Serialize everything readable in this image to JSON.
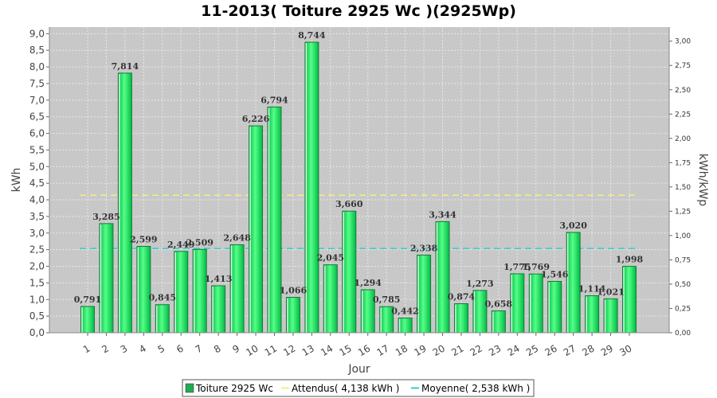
{
  "chart_data": {
    "type": "bar",
    "title": "11-2013( Toiture 2925 Wc )(2925Wp)",
    "xlabel": "Jour",
    "ylabel": "kWh",
    "y2label": "kWh/kWp",
    "ylim": [
      0,
      9.2
    ],
    "y2lim": [
      0,
      3.145
    ],
    "yticks": [
      "0,0",
      "0,5",
      "1,0",
      "1,5",
      "2,0",
      "2,5",
      "3,0",
      "3,5",
      "4,0",
      "4,5",
      "5,0",
      "5,5",
      "6,0",
      "6,5",
      "7,0",
      "7,5",
      "8,0",
      "8,5",
      "9,0"
    ],
    "y2ticks": [
      "0,00",
      "0,25",
      "0,50",
      "0,75",
      "1,00",
      "1,25",
      "1,50",
      "1,75",
      "2,00",
      "2,25",
      "2,50",
      "2,75",
      "3,00"
    ],
    "categories": [
      "1",
      "2",
      "3",
      "4",
      "5",
      "6",
      "7",
      "8",
      "9",
      "10",
      "11",
      "12",
      "13",
      "14",
      "15",
      "16",
      "17",
      "18",
      "19",
      "20",
      "21",
      "22",
      "23",
      "24",
      "25",
      "26",
      "27",
      "28",
      "29",
      "30"
    ],
    "values": [
      0.791,
      3.285,
      7.814,
      2.599,
      0.845,
      2.449,
      2.509,
      1.413,
      2.648,
      6.226,
      6.794,
      1.066,
      8.744,
      2.045,
      3.66,
      1.294,
      0.785,
      0.442,
      2.338,
      3.344,
      0.874,
      1.273,
      0.658,
      1.775,
      1.769,
      1.546,
      3.02,
      1.114,
      1.021,
      1.998
    ],
    "value_labels": [
      "0,791",
      "3,285",
      "7,814",
      "2,599",
      "0,845",
      "2,449",
      "2,509",
      "1,413",
      "2,648",
      "6,226",
      "6,794",
      "1,066",
      "8,744",
      "2,045",
      "3,660",
      "1,294",
      "0,785",
      "0,442",
      "2,338",
      "3,344",
      "0,874",
      "1,273",
      "0,658",
      "1,775",
      "1,769",
      "1,546",
      "3,020",
      "1,114",
      "1,021",
      "1,998"
    ],
    "reference_lines": [
      {
        "name": "Attendus( 4,138 kWh )",
        "value": 4.138,
        "color": "#f0f080"
      },
      {
        "name": "Moyenne( 2,538 kWh )",
        "value": 2.538,
        "color": "#33cccc"
      }
    ],
    "legend": [
      {
        "name": "Toiture 2925 Wc",
        "color": "#22aa55",
        "kind": "box"
      },
      {
        "name": "Attendus( 4,138 kWh )",
        "color": "#f0f080",
        "kind": "line"
      },
      {
        "name": "Moyenne( 2,538 kWh )",
        "color": "#33cccc",
        "kind": "line"
      }
    ],
    "legend_position": "bottom",
    "grid": true,
    "colors": {
      "bar_light": "#55ff88",
      "bar_dark": "#00bb44",
      "bar_border": "#1a7a3a",
      "plot_bg": "#c8c8c8",
      "grid": "#e8e8e8"
    }
  }
}
